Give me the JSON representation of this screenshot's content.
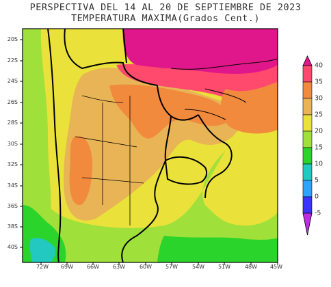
{
  "title": {
    "line1": "PERSPECTIVA DEL 14 AL 20 DE SEPTIEMBRE DE 2023",
    "line2": "TEMPERATURA MAXIMA(Grados Cent.)"
  },
  "map": {
    "lat_ticks": [
      "20S",
      "22S",
      "24S",
      "26S",
      "28S",
      "30S",
      "32S",
      "34S",
      "36S",
      "38S",
      "40S"
    ],
    "lon_ticks": [
      "72W",
      "69W",
      "66W",
      "63W",
      "60W",
      "57W",
      "54W",
      "51W",
      "48W",
      "45W"
    ]
  },
  "colorbar": {
    "labels": [
      "40",
      "35",
      "30",
      "25",
      "20",
      "15",
      "10",
      "5",
      "0",
      "-5"
    ],
    "colors": {
      "above_40": "#e0178a",
      "35_40": "#ff4a6e",
      "30_35": "#f28a3e",
      "25_30": "#e8b455",
      "20_25": "#eae13a",
      "15_20": "#9fe03a",
      "10_15": "#2bd42b",
      "5_10": "#22c9c0",
      "0_5": "#2aa4ff",
      "-5_0": "#3b33ff",
      "below_-5": "#bb2fe0"
    }
  }
}
